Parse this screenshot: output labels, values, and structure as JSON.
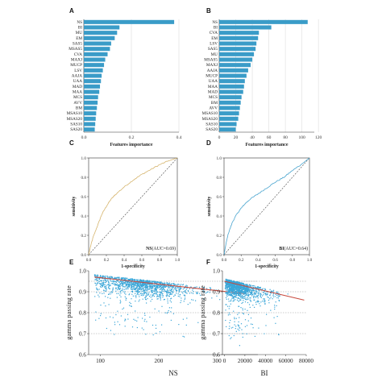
{
  "colors": {
    "bar": "#3a9cc8",
    "roc": "#d6b56e",
    "roc_bi": "#4aa5cf",
    "scatter": "#3aa6d8",
    "fit": "#c84a3e",
    "diag": "#444444"
  },
  "chart_data": [
    {
      "panel": "A",
      "type": "bar",
      "orientation": "horizontal",
      "categories": [
        "NS",
        "BI",
        "MU",
        "EM",
        "SAS5",
        "MSAS5",
        "CVA",
        "MAXJ",
        "MUCP",
        "LSV",
        "AAJA",
        "UAA",
        "MAD",
        "MAA",
        "MCS",
        "AVV",
        "BM",
        "MSAS10",
        "MSAS20",
        "SAS10",
        "SAS20"
      ],
      "values": [
        0.38,
        0.15,
        0.14,
        0.13,
        0.115,
        0.11,
        0.1,
        0.09,
        0.085,
        0.08,
        0.075,
        0.072,
        0.068,
        0.065,
        0.06,
        0.058,
        0.055,
        0.052,
        0.05,
        0.048,
        0.046
      ],
      "xlabel": "Features importance",
      "xlim": [
        0,
        0.4
      ],
      "xticks": [
        "0.0",
        "0.2",
        "0.4"
      ],
      "grid": true
    },
    {
      "panel": "B",
      "type": "bar",
      "orientation": "horizontal",
      "categories": [
        "NS",
        "BI",
        "CVA",
        "EM",
        "LSV",
        "SAS5",
        "MU",
        "MSAS5",
        "MAXJ",
        "AAJA",
        "MUCP",
        "UAA",
        "MAA",
        "MAD",
        "MCS",
        "BM",
        "AVV",
        "MSAS10",
        "MSAS20",
        "SAS10",
        "SAS20"
      ],
      "values": [
        107,
        63,
        48,
        47,
        45,
        44,
        42,
        40,
        38,
        35,
        33,
        31,
        30,
        29,
        27,
        26,
        25,
        24,
        23,
        21,
        20
      ],
      "xlabel": "Features importance",
      "xlim": [
        0,
        115
      ],
      "xticks": [
        "0",
        "20",
        "40",
        "60",
        "80",
        "100",
        "120"
      ],
      "grid": true
    },
    {
      "panel": "C",
      "type": "line",
      "x": [
        0,
        0.02,
        0.05,
        0.1,
        0.15,
        0.2,
        0.25,
        0.3,
        0.4,
        0.5,
        0.6,
        0.7,
        0.8,
        0.9,
        1
      ],
      "y": [
        0,
        0.08,
        0.18,
        0.3,
        0.42,
        0.5,
        0.57,
        0.62,
        0.7,
        0.77,
        0.83,
        0.88,
        0.93,
        0.97,
        1
      ],
      "xlabel": "1-specificity",
      "ylabel": "sensitivity",
      "xlim": [
        0,
        1
      ],
      "ylim": [
        0,
        1
      ],
      "xticks": [
        "0.0",
        "0.2",
        "0.4",
        "0.6",
        "0.8",
        "1.0"
      ],
      "yticks": [
        "0.0",
        "0.2",
        "0.4",
        "0.6",
        "0.8",
        "1.0"
      ],
      "legend_bold": "NS",
      "legend_rest": "(AUC=0.69)"
    },
    {
      "panel": "D",
      "type": "line",
      "x": [
        0,
        0.02,
        0.05,
        0.1,
        0.15,
        0.2,
        0.25,
        0.3,
        0.4,
        0.5,
        0.6,
        0.7,
        0.8,
        0.9,
        1
      ],
      "y": [
        0,
        0.1,
        0.22,
        0.34,
        0.42,
        0.48,
        0.53,
        0.57,
        0.63,
        0.69,
        0.75,
        0.8,
        0.87,
        0.93,
        1
      ],
      "xlabel": "1-specificity",
      "ylabel": "sensitivity",
      "xlim": [
        0,
        1
      ],
      "ylim": [
        0,
        1
      ],
      "xticks": [
        "0.0",
        "0.2",
        "0.4",
        "0.6",
        "0.8",
        "1.0"
      ],
      "yticks": [
        "0.0",
        "0.2",
        "0.4",
        "0.6",
        "0.8",
        "1.0"
      ],
      "legend_bold": "BI",
      "legend_rest": "(AUC=0.64)"
    },
    {
      "panel": "E",
      "type": "scatter",
      "xlabel": "NS",
      "ylabel": "gamma passing rate",
      "xlim": [
        80,
        370
      ],
      "ylim": [
        0.6,
        1.0
      ],
      "xticks": [
        "100",
        "200",
        "300"
      ],
      "yticks": [
        "0.6",
        "0.7",
        "0.8",
        "0.9",
        "1.0"
      ],
      "fit": {
        "x": [
          90,
          350
        ],
        "y": [
          0.97,
          0.89
        ]
      },
      "hlines": [
        0.95,
        0.9,
        0.8,
        0.7
      ]
    },
    {
      "panel": "F",
      "type": "scatter",
      "xlabel": "BI",
      "ylabel": "gamma passing rate",
      "xlim": [
        -2000,
        80000
      ],
      "ylim": [
        0.6,
        1.0
      ],
      "xticks": [
        "0",
        "20000",
        "40000",
        "60000",
        "80000"
      ],
      "yticks": [
        "0.6",
        "0.7",
        "0.8",
        "0.9",
        "1.0"
      ],
      "fit": {
        "x": [
          0,
          78000
        ],
        "y": [
          0.95,
          0.86
        ]
      },
      "hlines": [
        0.95,
        0.9,
        0.8,
        0.7
      ]
    }
  ]
}
